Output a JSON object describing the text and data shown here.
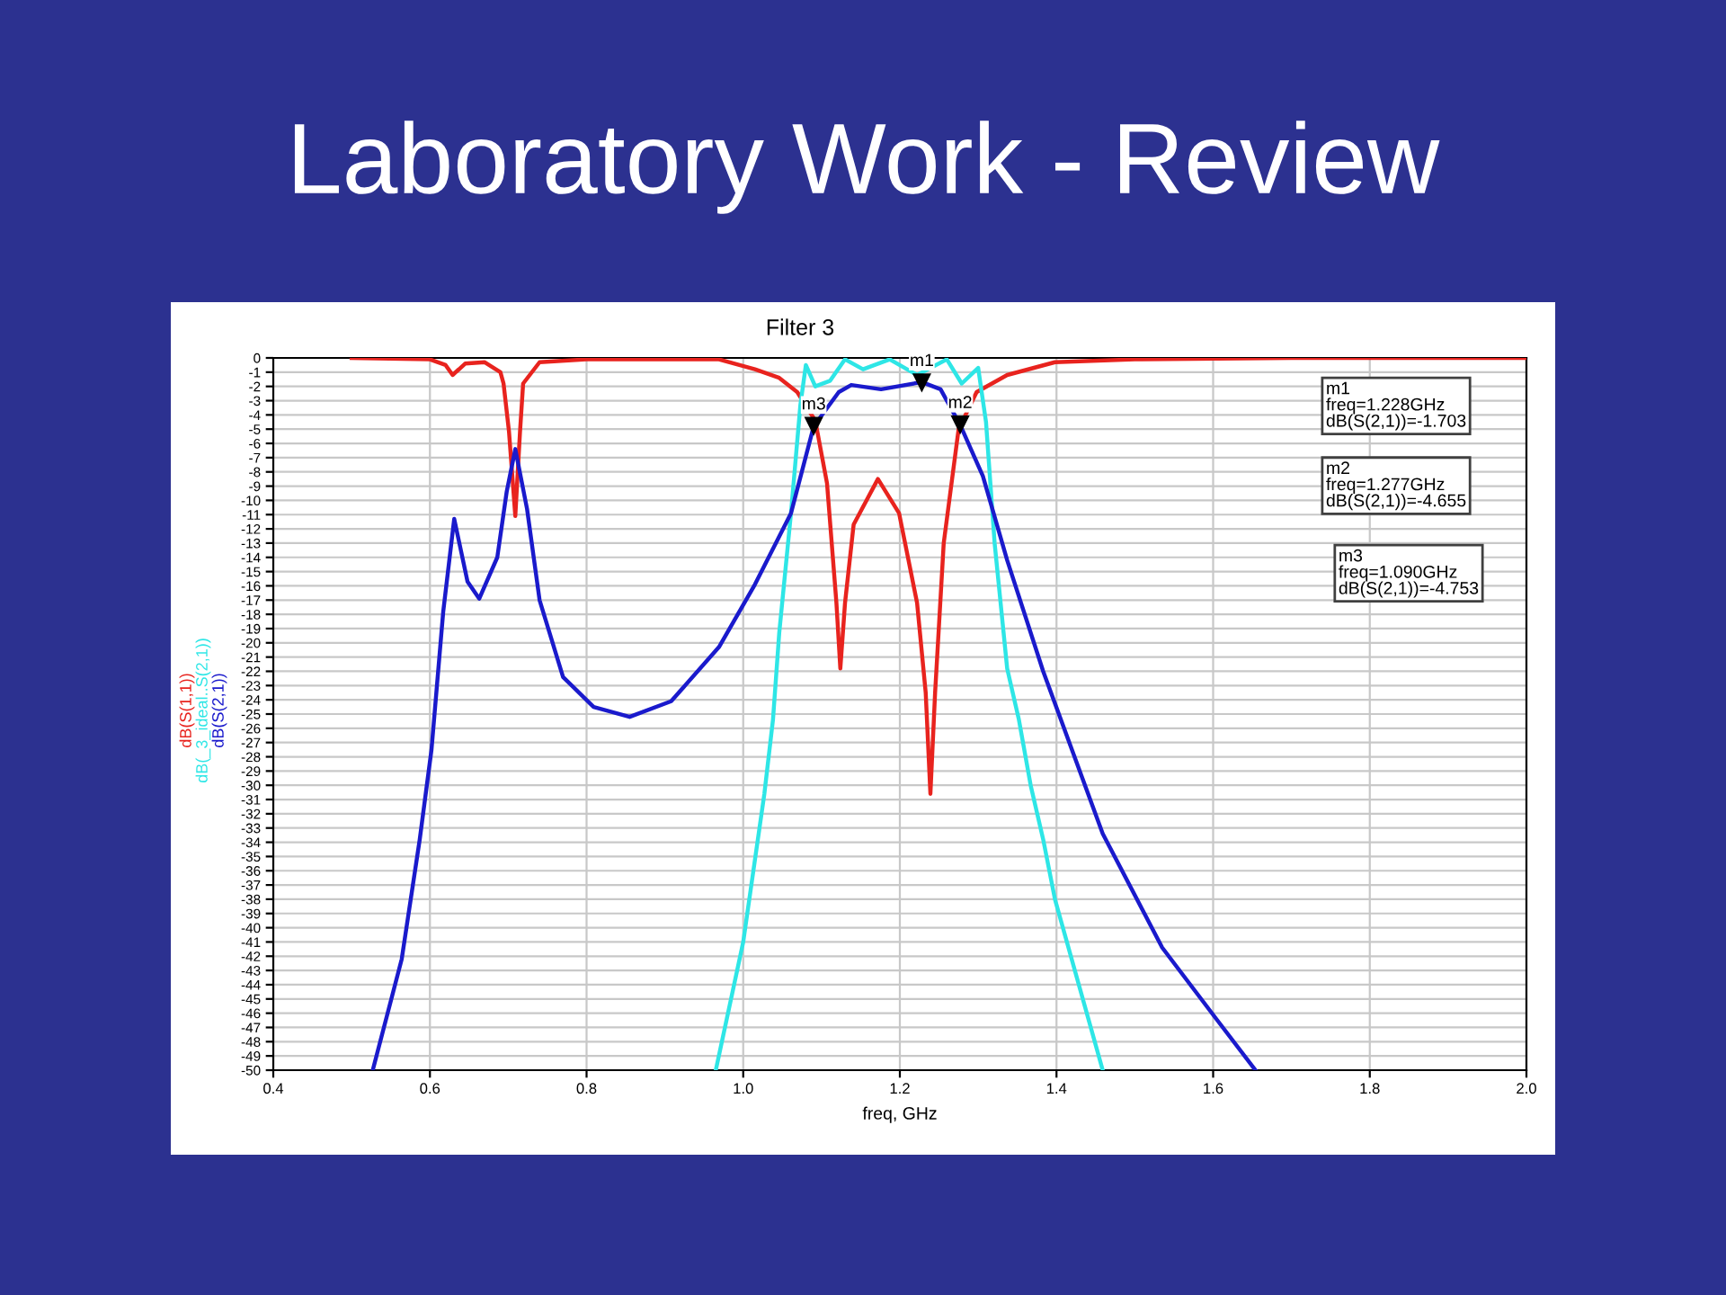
{
  "chart_data": {
    "type": "line",
    "title": "Laboratory Work - Review",
    "subtitle": "Filter 3",
    "xlabel": "freq, GHz",
    "xlim": [
      0.4,
      2.0
    ],
    "xticks": [
      0.4,
      0.6,
      0.8,
      {
        "value": 1,
        "label": "1.0"
      },
      1.2,
      1.4,
      1.6,
      1.8,
      {
        "value": 2,
        "label": "2.0"
      }
    ],
    "ylim": [
      -50,
      0
    ],
    "yticks": [
      0,
      -1,
      -2,
      -3,
      -4,
      -5,
      -6,
      -7,
      -8,
      -9,
      -10,
      -11,
      -12,
      -13,
      -14,
      -15,
      -16,
      -17,
      -18,
      -19,
      -20,
      -21,
      -22,
      -23,
      -24,
      -25,
      -26,
      -27,
      -28,
      -29,
      -30,
      -31,
      -32,
      -33,
      -34,
      -35,
      -36,
      -37,
      -38,
      -39,
      -40,
      -41,
      -42,
      -43,
      -44,
      -45,
      -46,
      -47,
      -48,
      -49,
      -50
    ],
    "grid": true,
    "line_style": "solid",
    "marker": "none",
    "series": [
      {
        "name": "dB(S(1,1))",
        "color": "#e8231e",
        "x": [
          0.5,
          0.6,
          0.62,
          0.629,
          0.645,
          0.67,
          0.69,
          0.694,
          0.701,
          0.709,
          0.715,
          0.719,
          0.74,
          0.8,
          0.9,
          0.969,
          1.015,
          1.046,
          1.069,
          1.092,
          1.107,
          1.119,
          1.124,
          1.13,
          1.141,
          1.172,
          1.199,
          1.222,
          1.233,
          1.239,
          1.245,
          1.256,
          1.275,
          1.298,
          1.337,
          1.398,
          1.5,
          1.7,
          2.0
        ],
        "values": [
          0,
          -0.1,
          -0.5,
          -1.2,
          -0.4,
          -0.3,
          -1.0,
          -1.8,
          -5.2,
          -11.1,
          -5.2,
          -1.8,
          -0.3,
          -0.1,
          -0.1,
          -0.1,
          -0.8,
          -1.4,
          -2.4,
          -4.4,
          -8.8,
          -17.2,
          -21.8,
          -17.2,
          -11.7,
          -8.5,
          -10.9,
          -17.2,
          -23.5,
          -30.6,
          -23.5,
          -13,
          -5.0,
          -2.4,
          -1.2,
          -0.3,
          -0.1,
          0,
          0
        ]
      },
      {
        "name": "dB(_3_ideal..S(2,1))",
        "color": "#2ee6e6",
        "x": [
          0.965,
          1.0,
          1.027,
          1.038,
          1.046,
          1.061,
          1.073,
          1.08,
          1.092,
          1.111,
          1.13,
          1.153,
          1.187,
          1.222,
          1.26,
          1.279,
          1.3,
          1.31,
          1.321,
          1.337,
          1.352,
          1.367,
          1.383,
          1.398,
          1.459
        ],
        "values": [
          -50,
          -41,
          -30.6,
          -25.4,
          -19.3,
          -10.9,
          -3.3,
          -0.5,
          -2.0,
          -1.6,
          -0.1,
          -0.8,
          -0.1,
          -1.2,
          -0.1,
          -1.8,
          -0.7,
          -4.5,
          -13,
          -21.8,
          -25.4,
          -30.0,
          -33.8,
          -38,
          -50
        ]
      },
      {
        "name": "dB(S(2,1))",
        "color": "#1a1acc",
        "x": [
          0.527,
          0.564,
          0.587,
          0.602,
          0.617,
          0.631,
          0.648,
          0.663,
          0.686,
          0.698,
          0.709,
          0.724,
          0.74,
          0.77,
          0.809,
          0.855,
          0.908,
          0.969,
          1.015,
          1.061,
          1.09,
          1.122,
          1.138,
          1.176,
          1.228,
          1.252,
          1.277,
          1.306,
          1.337,
          1.383,
          1.459,
          1.535,
          1.604,
          1.654
        ],
        "values": [
          -50,
          -42.2,
          -33.8,
          -27.5,
          -17.8,
          -11.3,
          -15.7,
          -16.9,
          -14.0,
          -9.4,
          -6.4,
          -10.6,
          -17.0,
          -22.4,
          -24.5,
          -25.2,
          -24.1,
          -20.3,
          -15.9,
          -10.9,
          -4.8,
          -2.4,
          -1.9,
          -2.2,
          -1.7,
          -2.2,
          -4.7,
          -8.3,
          -14.2,
          -22,
          -33.4,
          -41.4,
          -46.4,
          -50
        ]
      }
    ],
    "annotations": [
      {
        "text": "m1",
        "x": 1.228,
        "y": -1.703
      },
      {
        "text": "m2",
        "x": 1.277,
        "y": -4.655
      },
      {
        "text": "m3",
        "x": 1.09,
        "y": -4.753
      },
      "m1\nfreq=1.228GHz\ndB(S(2,1))=-1.703",
      "m2\nfreq=1.277GHz\ndB(S(2,1))=-4.655",
      "m3\nfreq=1.090GHz\ndB(S(2,1))=-4.753"
    ]
  }
}
